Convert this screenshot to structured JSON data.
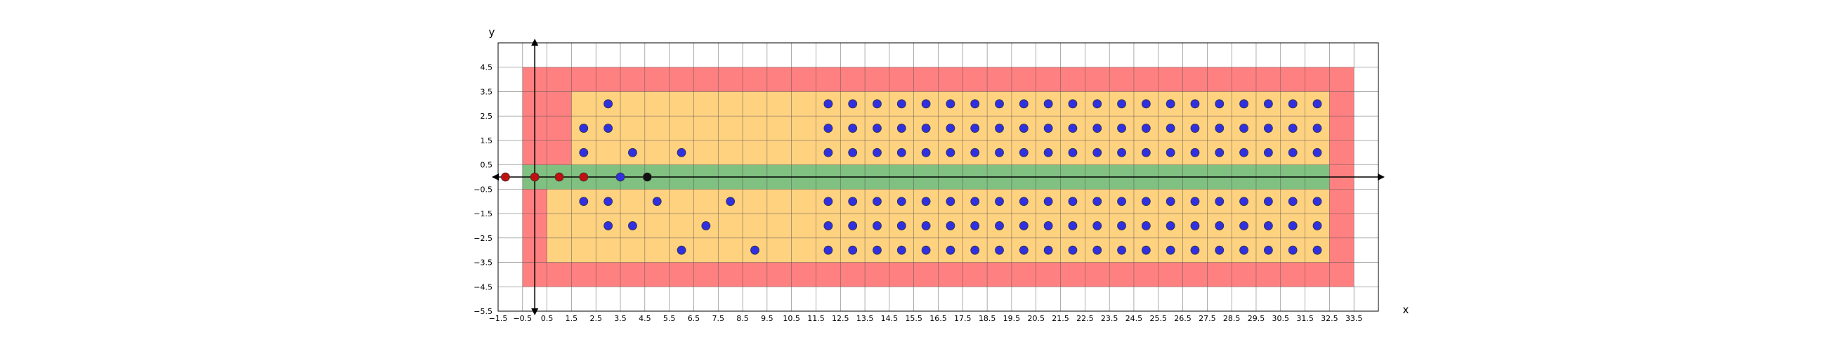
{
  "chart_data": {
    "type": "scatter",
    "xlabel": "x",
    "ylabel": "y",
    "xlim": [
      -1.5,
      34.5
    ],
    "ylim": [
      -5.5,
      5.5
    ],
    "grid": true,
    "x_ticks": [
      -1.5,
      -0.5,
      0.5,
      1.5,
      2.5,
      3.5,
      4.5,
      5.5,
      6.5,
      7.5,
      8.5,
      9.5,
      10.5,
      11.5,
      12.5,
      13.5,
      14.5,
      15.5,
      16.5,
      17.5,
      18.5,
      19.5,
      20.5,
      21.5,
      22.5,
      23.5,
      24.5,
      25.5,
      26.5,
      27.5,
      28.5,
      29.5,
      30.5,
      31.5,
      32.5,
      33.5
    ],
    "x_tick_labels": [
      "−1.5",
      "−0.5",
      "0.5",
      "1.5",
      "2.5",
      "3.5",
      "4.5",
      "5.5",
      "6.5",
      "7.5",
      "8.5",
      "9.5",
      "10.5",
      "11.5",
      "12.5",
      "13.5",
      "14.5",
      "15.5",
      "16.5",
      "17.5",
      "18.5",
      "19.5",
      "20.5",
      "21.5",
      "22.5",
      "23.5",
      "24.5",
      "25.5",
      "26.5",
      "27.5",
      "28.5",
      "29.5",
      "30.5",
      "31.5",
      "32.5",
      "33.5"
    ],
    "y_ticks": [
      4.5,
      3.5,
      2.5,
      1.5,
      0.5,
      -0.5,
      -1.5,
      -2.5,
      -3.5,
      -4.5,
      -5.5
    ],
    "y_tick_labels": [
      "4.5",
      "3.5",
      "2.5",
      "1.5",
      "0.5",
      "−0.5",
      "−1.5",
      "−2.5",
      "−3.5",
      "−4.5",
      "−5.5"
    ],
    "regions": [
      {
        "color": "#ff8080",
        "x": [
          -0.5,
          33.5
        ],
        "y": [
          -4.5,
          4.5
        ]
      },
      {
        "color": "#ffd280",
        "x": [
          0.5,
          32.5
        ],
        "y": [
          -3.5,
          3.5
        ]
      },
      {
        "color": "#ff8080",
        "x": [
          -0.5,
          1.5
        ],
        "y": [
          0.5,
          3.5
        ]
      },
      {
        "color": "#ff8080",
        "x": [
          -0.5,
          0.5
        ],
        "y": [
          -3.5,
          -0.5
        ]
      },
      {
        "color": "#80c080",
        "x": [
          -0.5,
          32.5
        ],
        "y": [
          -0.5,
          0.5
        ]
      }
    ],
    "series": [
      {
        "color": "#3030e0",
        "points": [
          [
            3,
            3
          ],
          [
            2,
            2
          ],
          [
            3,
            2
          ],
          [
            2,
            1
          ],
          [
            4,
            1
          ],
          [
            6,
            1
          ],
          [
            2,
            -1
          ],
          [
            3,
            -1
          ],
          [
            5,
            -1
          ],
          [
            8,
            -1
          ],
          [
            3,
            -2
          ],
          [
            4,
            -2
          ],
          [
            7,
            -2
          ],
          [
            6,
            -3
          ],
          [
            9,
            -3
          ],
          [
            3.5,
            0
          ]
        ],
        "grid_blocks": [
          {
            "x_from": 12,
            "x_to": 32,
            "y": [
              3,
              2,
              1,
              -1,
              -2,
              -3
            ]
          }
        ]
      },
      {
        "color": "#c01010",
        "points": [
          [
            -1.2,
            0
          ],
          [
            0,
            0
          ],
          [
            1,
            0
          ],
          [
            2,
            0
          ]
        ]
      },
      {
        "color": "#111111",
        "points": [
          [
            4.6,
            0
          ]
        ]
      }
    ]
  }
}
